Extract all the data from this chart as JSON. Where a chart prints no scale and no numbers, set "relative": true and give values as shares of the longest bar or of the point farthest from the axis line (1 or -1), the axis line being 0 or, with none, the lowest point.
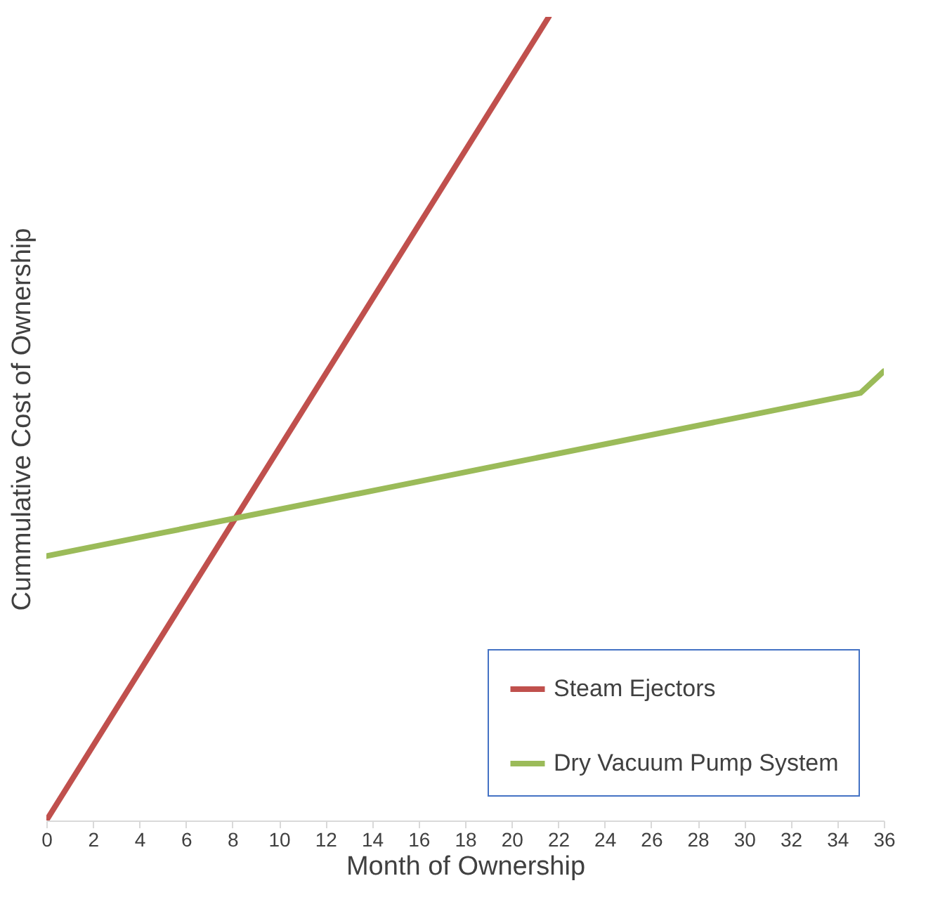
{
  "chart_data": {
    "type": "line",
    "relative": true,
    "xlabel": "Month of Ownership",
    "ylabel": "Cummulative Cost of Ownership",
    "xlim": [
      0,
      36
    ],
    "xticks": [
      0,
      2,
      4,
      6,
      8,
      10,
      12,
      14,
      16,
      18,
      20,
      22,
      24,
      26,
      28,
      30,
      32,
      34,
      36
    ],
    "legend": "bottom right",
    "series": [
      {
        "name": "Steam Ejectors",
        "color": "#c0504d",
        "x": [
          0,
          21.6
        ],
        "values": [
          0,
          1
        ]
      },
      {
        "name": "Dry Vacuum Pump System",
        "color": "#9bbb59",
        "x": [
          0,
          5,
          10,
          15,
          20,
          25,
          30,
          35,
          36
        ],
        "values": [
          0.329,
          0.358,
          0.387,
          0.416,
          0.445,
          0.474,
          0.503,
          0.532,
          0.559
        ]
      }
    ]
  }
}
